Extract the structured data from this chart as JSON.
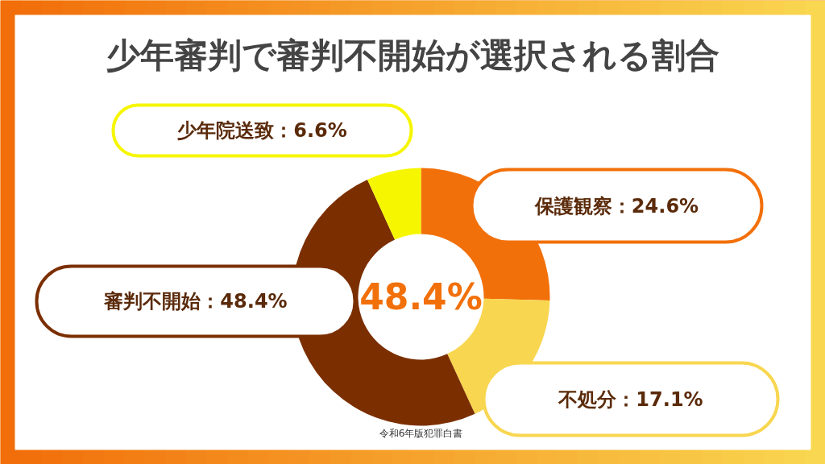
{
  "chart_data": {
    "type": "donut",
    "title": "少年審判で審判不開始が選択される割合",
    "categories": [
      "保護観察",
      "不処分",
      "審判不開始",
      "少年院送致"
    ],
    "values": [
      24.6,
      17.1,
      48.4,
      6.6
    ],
    "value_labels": [
      "24.6%",
      "17.1%",
      "48.4%",
      "6.6%"
    ],
    "colors": [
      "#f2700a",
      "#f8d650",
      "#7b2f00",
      "#f6f600"
    ],
    "annotations": [
      "48.4%",
      "令和6年版犯罪白書"
    ]
  }
}
